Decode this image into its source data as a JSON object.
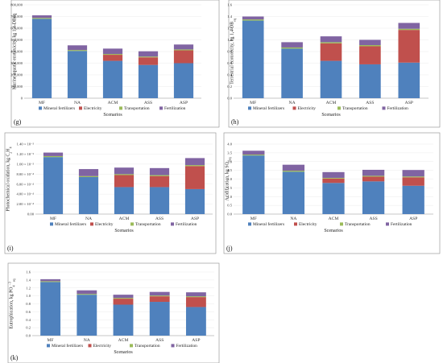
{
  "chart_data": [
    {
      "id": "g",
      "type": "bar",
      "stacked": true,
      "panel_label": "(g)",
      "ylabel": "Marine aquatic ecotoxicity, kg 1,4-DBeq",
      "xlabel": "Scenarios",
      "yticks": [
        "0",
        "100,000",
        "200,000",
        "300,000",
        "400,000",
        "500,000",
        "600,000",
        "700,000",
        "800,000"
      ],
      "ylim": [
        0,
        800000
      ],
      "categories": [
        "MF",
        "NA",
        "ACM",
        "ASS",
        "ASP"
      ],
      "series": [
        {
          "name": "Mineral fertilizers",
          "values": [
            680000,
            405000,
            320000,
            285000,
            300000
          ]
        },
        {
          "name": "Electricity",
          "values": [
            0,
            0,
            52000,
            65000,
            110000
          ]
        },
        {
          "name": "Transportation",
          "values": [
            8000,
            8000,
            7000,
            7000,
            8000
          ]
        },
        {
          "name": "Fertilization",
          "values": [
            22000,
            40000,
            46000,
            45000,
            42000
          ]
        }
      ],
      "legend_position": "bottom"
    },
    {
      "id": "h",
      "type": "bar",
      "stacked": true,
      "panel_label": "(h)",
      "ylabel": "Terrestrial ecotoxicity, kg 1,4-DB",
      "ylabel_sub": "eq",
      "xlabel": "Scenarios",
      "yticks": [
        "0.0",
        "0.2",
        "0.4",
        "0.6",
        "0.8",
        "1.0",
        "1.2",
        "1.4",
        "1.6"
      ],
      "ylim": [
        0,
        1.6
      ],
      "categories": [
        "MF",
        "NA",
        "ACM",
        "ASS",
        "ASP"
      ],
      "series": [
        {
          "name": "Mineral fertilizers",
          "values": [
            1.33,
            0.85,
            0.64,
            0.58,
            0.61
          ]
        },
        {
          "name": "Electricity",
          "values": [
            0,
            0,
            0.3,
            0.31,
            0.56
          ]
        },
        {
          "name": "Transportation",
          "values": [
            0.02,
            0.02,
            0.02,
            0.02,
            0.02
          ]
        },
        {
          "name": "Fertilization",
          "values": [
            0.05,
            0.09,
            0.1,
            0.09,
            0.1
          ]
        }
      ],
      "legend_position": "bottom"
    },
    {
      "id": "i",
      "type": "bar",
      "stacked": true,
      "panel_label": "(i)",
      "ylabel": "Photochemical oxidation, kg C",
      "ylabel_sub1": "2",
      "ylabel_mid": "H",
      "ylabel_sub2": "4",
      "xlabel": "Scenarios",
      "yticks": [
        "0.00",
        "2.00 × 10⁻⁴",
        "4.00 × 10⁻⁴",
        "6.00 × 10⁻⁴",
        "8.00 × 10⁻⁴",
        "1.00 × 10⁻³",
        "1.20 × 10⁻³",
        "1.40 × 10⁻³"
      ],
      "ylim": [
        0,
        0.0014
      ],
      "categories": [
        "MF",
        "NA",
        "ACM",
        "ASS",
        "ASP"
      ],
      "series": [
        {
          "name": "Mineral fertilizers",
          "values": [
            0.00114,
            0.00074,
            0.00054,
            0.00054,
            0.0005
          ]
        },
        {
          "name": "Electricity",
          "values": [
            0,
            0,
            0.00024,
            0.00022,
            0.00046
          ]
        },
        {
          "name": "Transportation",
          "values": [
            2e-05,
            2e-05,
            2e-05,
            2e-05,
            2e-05
          ]
        },
        {
          "name": "Fertilization",
          "values": [
            7e-05,
            0.00014,
            0.00013,
            0.00014,
            0.00014
          ]
        }
      ],
      "legend_position": "bottom"
    },
    {
      "id": "j",
      "type": "bar",
      "stacked": true,
      "panel_label": "(j)",
      "ylabel": "Acidification, kg SO",
      "ylabel_sub": "2eq",
      "xlabel": "Scenarios",
      "yticks": [
        "0.0",
        "0.5",
        "1.0",
        "1.5",
        "2.0",
        "2.5",
        "3.0",
        "3.5",
        "4.0"
      ],
      "ylim": [
        0,
        4
      ],
      "categories": [
        "MF",
        "NA",
        "ACM",
        "ASS",
        "ASP"
      ],
      "series": [
        {
          "name": "Mineral fertilizers",
          "values": [
            3.35,
            2.42,
            1.78,
            1.87,
            1.62
          ]
        },
        {
          "name": "Electricity",
          "values": [
            0,
            0,
            0.25,
            0.27,
            0.48
          ]
        },
        {
          "name": "Transportation",
          "values": [
            0.05,
            0.06,
            0.04,
            0.05,
            0.05
          ]
        },
        {
          "name": "Fertilization",
          "values": [
            0.22,
            0.34,
            0.33,
            0.34,
            0.37
          ]
        }
      ],
      "legend_position": "bottom"
    },
    {
      "id": "k",
      "type": "bar",
      "stacked": true,
      "panel_label": "(k)",
      "ylabel": "Eutrophication, kg PO",
      "ylabel_sub": "4",
      "ylabel_sup": "−3",
      "ylabel_sub2": "eq",
      "xlabel": "Scenarios",
      "yticks": [
        "0.0",
        "0.2",
        "0.4",
        "0.6",
        "0.8",
        "1.0",
        "1.2",
        "1.4",
        "1.6"
      ],
      "ylim": [
        0,
        1.6
      ],
      "categories": [
        "MF",
        "NA",
        "ACM",
        "ASS",
        "ASP"
      ],
      "series": [
        {
          "name": "Mineral fertilizers",
          "values": [
            1.35,
            1.03,
            0.78,
            0.85,
            0.72
          ]
        },
        {
          "name": "Electricity",
          "values": [
            0,
            0,
            0.15,
            0.14,
            0.25
          ]
        },
        {
          "name": "Transportation",
          "values": [
            0.02,
            0.02,
            0.02,
            0.02,
            0.02
          ]
        },
        {
          "name": "Fertilization",
          "values": [
            0.05,
            0.09,
            0.08,
            0.09,
            0.1
          ]
        }
      ],
      "legend_position": "bottom"
    }
  ],
  "colors": {
    "Mineral fertilizers": "#4F81BD",
    "Electricity": "#C0504D",
    "Transportation": "#9BBB59",
    "Fertilization": "#8064A2"
  }
}
